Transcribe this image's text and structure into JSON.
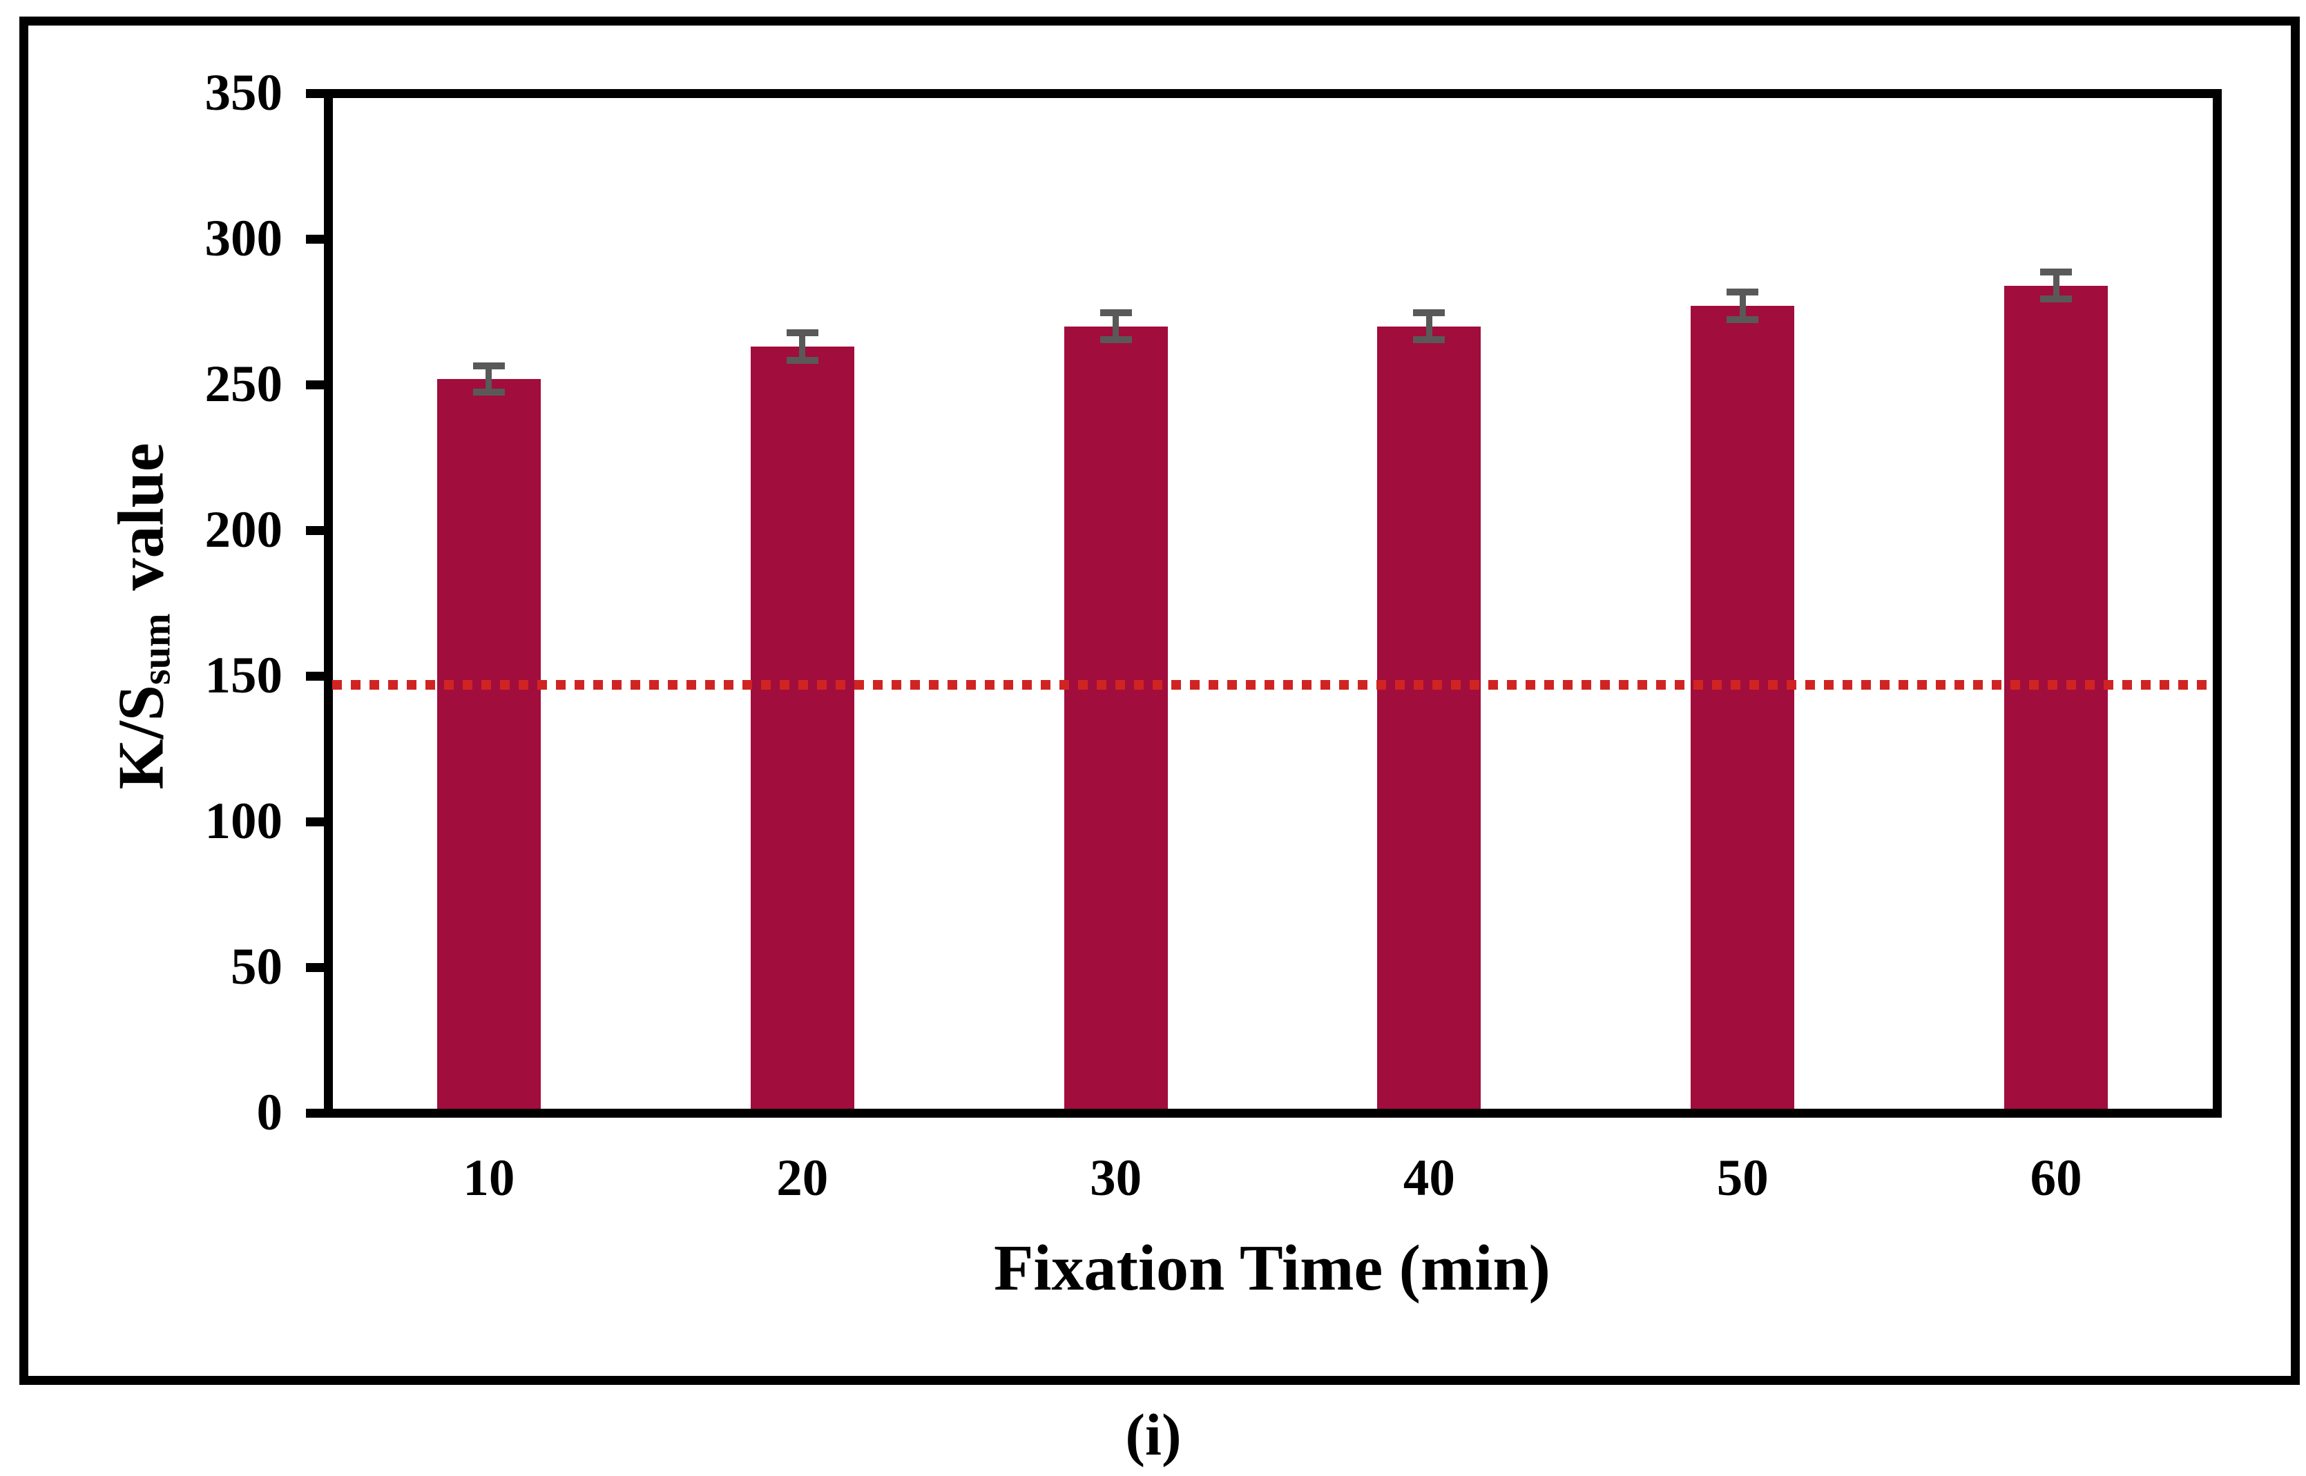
{
  "chart_data": {
    "type": "bar",
    "categories": [
      "10",
      "20",
      "30",
      "40",
      "50",
      "60"
    ],
    "values": [
      252,
      263,
      270,
      270,
      277,
      284
    ],
    "errors": [
      4.5,
      4.7,
      4.7,
      4.7,
      4.7,
      4.6
    ],
    "xlabel": "Fixation Time (min)",
    "ylabel": "K/S_sum value",
    "ylabel_parts": {
      "main": "K/S",
      "sub": "sum",
      "rest": "value"
    },
    "yticks": [
      "0",
      "50",
      "100",
      "150",
      "200",
      "250",
      "300",
      "350"
    ],
    "ylim": [
      0,
      350
    ],
    "ytick_step": 50,
    "grid": false,
    "legend_position": "none",
    "reference_line": {
      "value": 147,
      "style": "dotted",
      "color": "#D02422"
    },
    "bar_color": "#A10D3C",
    "error_bar_color": "#595959",
    "frame_color": "#000000"
  },
  "caption": "(i)"
}
